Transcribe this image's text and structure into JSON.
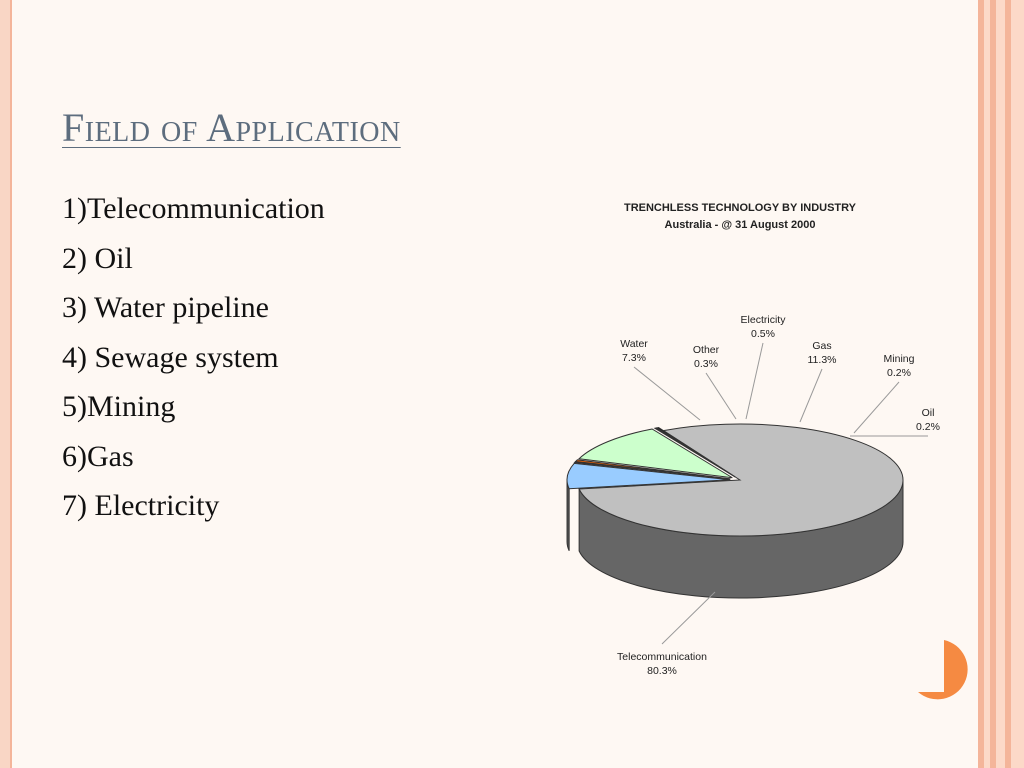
{
  "slide": {
    "title": "Field of Application",
    "items": [
      "1)Telecommunication",
      "2) Oil",
      "3) Water pipeline",
      "4) Sewage system",
      "5)Mining",
      "6)Gas",
      "7) Electricity"
    ],
    "colors": {
      "background": "#fef8f3",
      "title": "#5d6d7e",
      "accent": "#f58a42"
    }
  },
  "chart_data": {
    "type": "pie",
    "title": "TRENCHLESS TECHNOLOGY BY INDUSTRY",
    "subtitle": "Australia - @ 31 August 2000",
    "style": "3d-exploded",
    "slices": [
      {
        "label": "Telecommunication",
        "value": 80.3,
        "value_label": "80.3%",
        "color": "#c0c0c0"
      },
      {
        "label": "Water",
        "value": 7.3,
        "value_label": "7.3%",
        "color": "#99ccff"
      },
      {
        "label": "Other",
        "value": 0.3,
        "value_label": "0.3%",
        "color": "#660000"
      },
      {
        "label": "Electricity",
        "value": 0.5,
        "value_label": "0.5%",
        "color": "#ff6600"
      },
      {
        "label": "Gas",
        "value": 11.3,
        "value_label": "11.3%",
        "color": "#ccffcc"
      },
      {
        "label": "Mining",
        "value": 0.2,
        "value_label": "0.2%",
        "color": "#333333"
      },
      {
        "label": "Oil",
        "value": 0.2,
        "value_label": "0.2%",
        "color": "#000000"
      }
    ]
  }
}
